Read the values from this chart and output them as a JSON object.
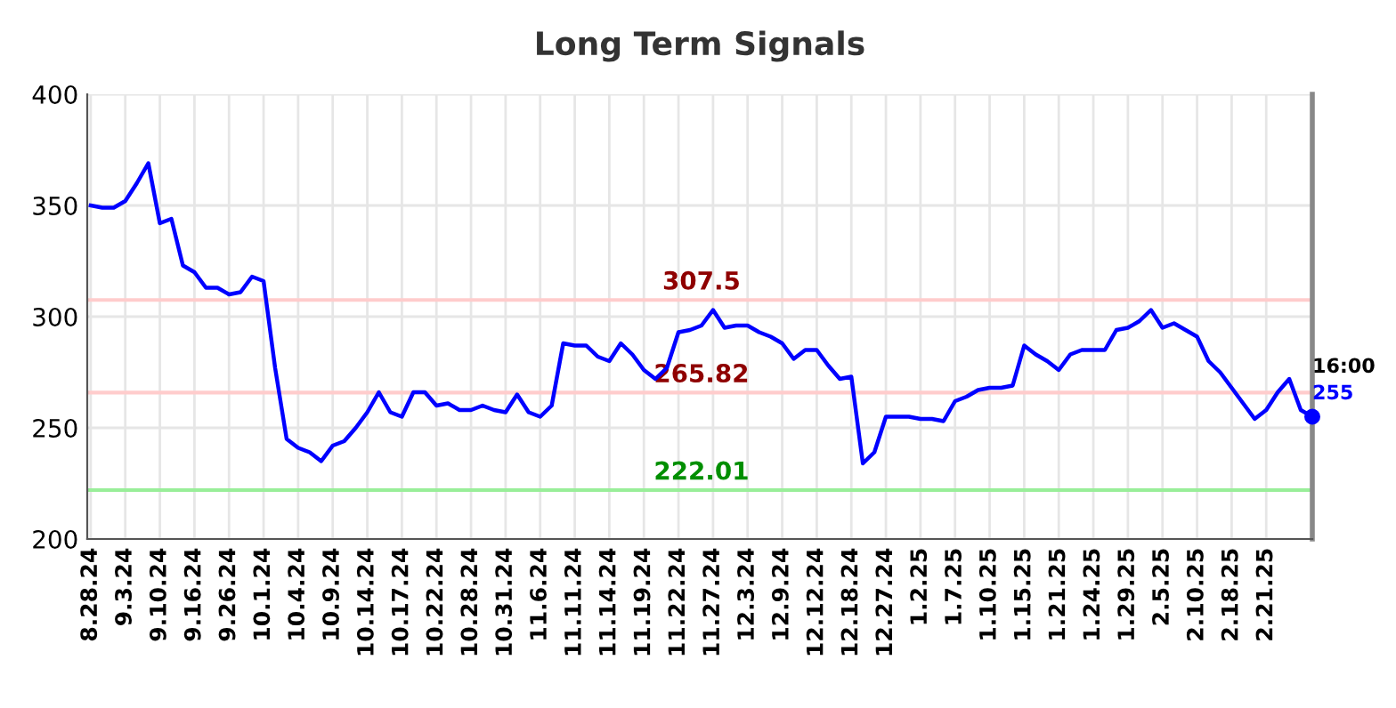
{
  "chart_data": {
    "type": "line",
    "title": "Long Term Signals",
    "categories": [
      "8.28.24",
      null,
      null,
      "9.3.24",
      null,
      null,
      "9.10.24",
      null,
      null,
      "9.16.24",
      null,
      null,
      "9.26.24",
      null,
      null,
      "10.1.24",
      null,
      null,
      "10.4.24",
      null,
      null,
      "10.9.24",
      null,
      null,
      "10.14.24",
      null,
      null,
      "10.17.24",
      null,
      null,
      "10.22.24",
      null,
      null,
      "10.28.24",
      null,
      null,
      "10.31.24",
      null,
      null,
      "11.6.24",
      null,
      null,
      "11.11.24",
      null,
      null,
      "11.14.24",
      null,
      null,
      "11.19.24",
      null,
      null,
      "11.22.24",
      null,
      null,
      "11.27.24",
      null,
      null,
      "12.3.24",
      null,
      null,
      "12.9.24",
      null,
      null,
      "12.12.24",
      null,
      null,
      "12.18.24",
      null,
      null,
      "12.27.24",
      null,
      null,
      "1.2.25",
      null,
      null,
      "1.7.25",
      null,
      null,
      "1.10.25",
      null,
      null,
      "1.15.25",
      null,
      null,
      "1.21.25",
      null,
      null,
      "1.24.25",
      null,
      null,
      "1.29.25",
      null,
      null,
      "2.5.25",
      null,
      null,
      "2.10.25",
      null,
      null,
      "2.18.25",
      null,
      null,
      "2.21.25",
      null,
      null,
      null,
      null
    ],
    "series": [
      {
        "color": "#0000ff",
        "values": [
          350,
          349,
          349,
          352,
          360,
          369,
          342,
          344,
          323,
          320,
          313,
          313,
          310,
          311,
          318,
          316,
          277,
          245,
          241,
          239,
          235,
          242,
          244,
          250,
          257,
          266,
          257,
          255,
          266,
          266,
          260,
          261,
          258,
          258,
          260,
          258,
          257,
          265,
          257,
          255,
          260,
          288,
          287,
          287,
          282,
          280,
          288,
          283,
          276,
          272,
          277,
          293,
          294,
          296,
          303,
          295,
          296,
          296,
          293,
          291,
          288,
          281,
          285,
          285,
          278,
          272,
          273,
          234,
          239,
          255,
          255,
          255,
          254,
          254,
          253,
          262,
          264,
          267,
          268,
          268,
          269,
          287,
          283,
          280,
          276,
          283,
          285,
          285,
          285,
          294,
          295,
          298,
          303,
          295,
          297,
          294,
          291,
          280,
          275,
          268,
          261,
          254,
          258,
          266,
          272,
          258,
          255
        ]
      },
      {
        "type": "scatter",
        "color": "#0000ff",
        "marker": "circle",
        "values": [
          null,
          null,
          null,
          null,
          null,
          null,
          null,
          null,
          null,
          null,
          null,
          null,
          null,
          null,
          null,
          null,
          null,
          null,
          null,
          null,
          null,
          null,
          null,
          null,
          null,
          null,
          null,
          null,
          null,
          null,
          null,
          null,
          null,
          null,
          null,
          null,
          null,
          null,
          null,
          null,
          null,
          null,
          null,
          null,
          null,
          null,
          null,
          null,
          null,
          null,
          null,
          null,
          null,
          null,
          null,
          null,
          null,
          null,
          null,
          null,
          null,
          null,
          null,
          null,
          null,
          null,
          null,
          null,
          null,
          null,
          null,
          null,
          null,
          null,
          null,
          null,
          null,
          null,
          null,
          null,
          null,
          null,
          null,
          null,
          null,
          null,
          null,
          null,
          null,
          null,
          null,
          null,
          null,
          null,
          null,
          null,
          null,
          null,
          null,
          null,
          null,
          null,
          null,
          null,
          null,
          null,
          255
        ],
        "value_labels": [
          null,
          null,
          null,
          null,
          null,
          null,
          null,
          null,
          null,
          null,
          null,
          null,
          null,
          null,
          null,
          null,
          null,
          null,
          null,
          null,
          null,
          null,
          null,
          null,
          null,
          null,
          null,
          null,
          null,
          null,
          null,
          null,
          null,
          null,
          null,
          null,
          null,
          null,
          null,
          null,
          null,
          null,
          null,
          null,
          null,
          null,
          null,
          null,
          null,
          null,
          null,
          null,
          null,
          null,
          null,
          null,
          null,
          null,
          null,
          null,
          null,
          null,
          null,
          null,
          null,
          null,
          null,
          null,
          null,
          null,
          null,
          null,
          null,
          null,
          null,
          null,
          null,
          null,
          null,
          null,
          null,
          null,
          null,
          null,
          null,
          null,
          null,
          null,
          null,
          null,
          null,
          null,
          null,
          null,
          null,
          null,
          null,
          null,
          null,
          null,
          null,
          null,
          null,
          null,
          null,
          null,
          "255"
        ]
      }
    ],
    "annotations": [
      "16:00"
    ],
    "ref_lines": [
      {
        "axis": "y",
        "value": 307.5,
        "label": "307.5",
        "color": "#ffcccc"
      },
      {
        "axis": "y",
        "value": 265.82,
        "label": "265.82",
        "color": "#ffcccc"
      },
      {
        "axis": "y",
        "value": 222.01,
        "label": "222.01",
        "color": "#99ee99"
      }
    ],
    "ylim": [
      200,
      400
    ],
    "yticks": [
      200,
      250,
      300,
      350,
      400
    ],
    "grid": true
  }
}
